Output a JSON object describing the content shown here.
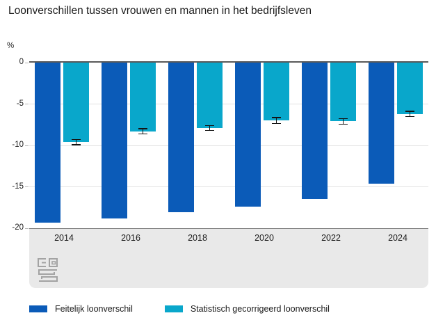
{
  "title": "Loonverschillen tussen vrouwen en mannen in het bedrijfsleven",
  "y_unit_label": "%",
  "chart_data": {
    "type": "bar",
    "title": "Loonverschillen tussen vrouwen en mannen in het bedrijfsleven",
    "xlabel": "",
    "ylabel": "%",
    "categories": [
      "2014",
      "2016",
      "2018",
      "2020",
      "2022",
      "2024"
    ],
    "series": [
      {
        "name": "Feitelijk loonverschil",
        "color": "#0b5bb8",
        "values": [
          -19.3,
          -18.8,
          -18.1,
          -17.4,
          -16.5,
          -14.6
        ]
      },
      {
        "name": "Statistisch gecorrigeerd loonverschil",
        "color": "#09a7cb",
        "values": [
          -9.6,
          -8.3,
          -7.9,
          -7.0,
          -7.1,
          -6.2
        ],
        "error_margins": [
          0.3,
          0.3,
          0.3,
          0.35,
          0.35,
          0.3
        ]
      }
    ],
    "ylim": [
      -20,
      0
    ],
    "yticks": [
      0,
      -5,
      -10,
      -15,
      -20
    ],
    "grid": true,
    "legend_position": "bottom",
    "source_logo": "cbs-logo"
  },
  "colors": {
    "band": "#e9e9e9",
    "zero_line": "#595959",
    "axis_line": "#7d7d7d",
    "gridline": "#e2e2e2",
    "error_bar": "#141414",
    "logo_stroke": "#a3a3a3"
  }
}
